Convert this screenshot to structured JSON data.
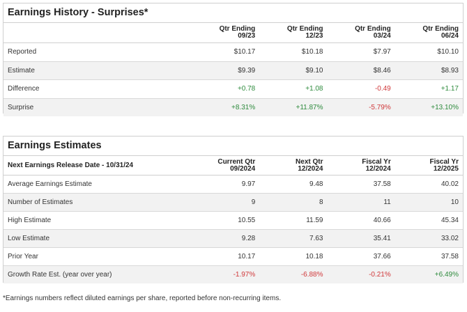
{
  "history": {
    "title": "Earnings History - Surprises*",
    "columns": [
      {
        "line1": "Qtr Ending",
        "line2": "09/23"
      },
      {
        "line1": "Qtr Ending",
        "line2": "12/23"
      },
      {
        "line1": "Qtr Ending",
        "line2": "03/24"
      },
      {
        "line1": "Qtr Ending",
        "line2": "06/24"
      }
    ],
    "rows": [
      {
        "label": "Reported",
        "values": [
          "$10.17",
          "$10.18",
          "$7.97",
          "$10.10"
        ]
      },
      {
        "label": "Estimate",
        "values": [
          "$9.39",
          "$9.10",
          "$8.46",
          "$8.93"
        ]
      },
      {
        "label": "Difference",
        "values": [
          "+0.78",
          "+1.08",
          "-0.49",
          "+1.17"
        ]
      },
      {
        "label": "Surprise",
        "values": [
          "+8.31%",
          "+11.87%",
          "-5.79%",
          "+13.10%"
        ]
      }
    ]
  },
  "estimates": {
    "title": "Earnings Estimates",
    "header_label": "Next Earnings Release Date - 10/31/24",
    "columns": [
      {
        "line1": "Current Qtr",
        "line2": "09/2024"
      },
      {
        "line1": "Next Qtr",
        "line2": "12/2024"
      },
      {
        "line1": "Fiscal Yr",
        "line2": "12/2024"
      },
      {
        "line1": "Fiscal Yr",
        "line2": "12/2025"
      }
    ],
    "rows": [
      {
        "label": "Average Earnings Estimate",
        "values": [
          "9.97",
          "9.48",
          "37.58",
          "40.02"
        ]
      },
      {
        "label": "Number of Estimates",
        "values": [
          "9",
          "8",
          "11",
          "10"
        ]
      },
      {
        "label": "High Estimate",
        "values": [
          "10.55",
          "11.59",
          "40.66",
          "45.34"
        ]
      },
      {
        "label": "Low Estimate",
        "values": [
          "9.28",
          "7.63",
          "35.41",
          "33.02"
        ]
      },
      {
        "label": "Prior Year",
        "values": [
          "10.17",
          "10.18",
          "37.66",
          "37.58"
        ]
      },
      {
        "label": "Growth Rate Est. (year over year)",
        "values": [
          "-1.97%",
          "-6.88%",
          "-0.21%",
          "+6.49%"
        ]
      }
    ]
  },
  "footnote": "*Earnings numbers reflect diluted earnings per share, reported before non-recurring items.",
  "colors": {
    "positive": "#2e8b3d",
    "negative": "#d0383a",
    "border": "#cfcfcf",
    "alt_row": "#f2f2f2"
  }
}
